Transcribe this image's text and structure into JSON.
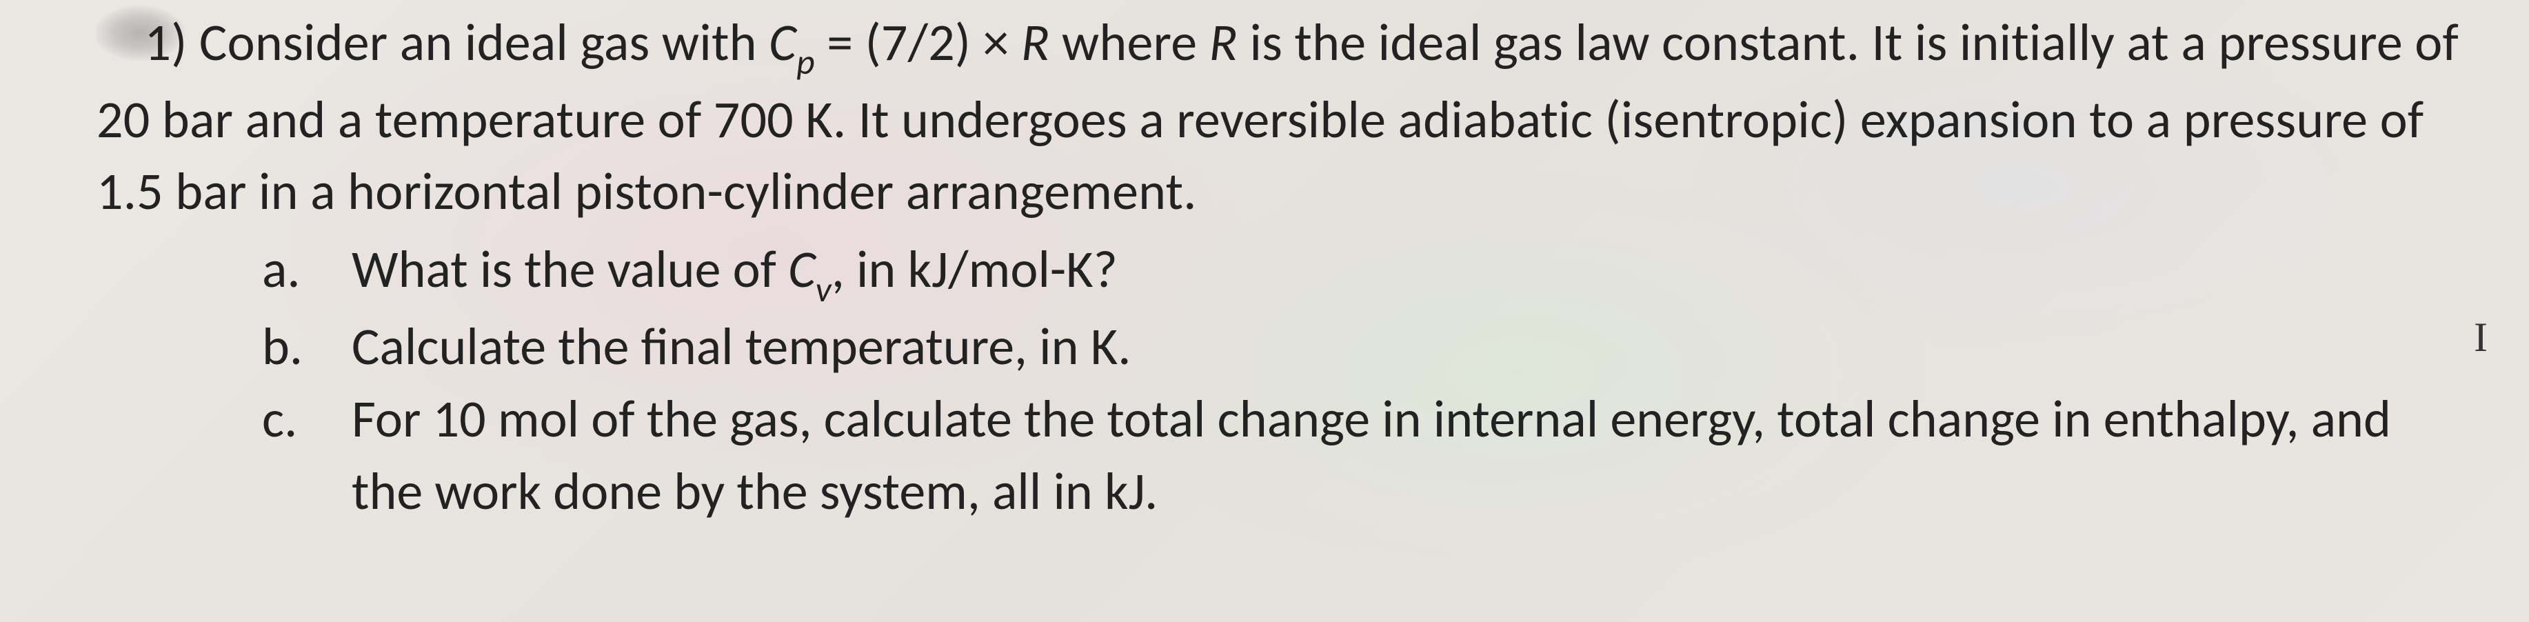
{
  "question": {
    "number": "1)",
    "intro_part1": "Consider an ideal gas with ",
    "cp_sym_C": "C",
    "cp_sym_p": "p",
    "intro_part2": " = (7/2) × ",
    "R1": "R",
    "intro_part3": " where ",
    "R2": "R",
    "intro_part4": " is the ideal gas law constant. It is initially at a pressure of 20 bar and a temperature of 700 K. It undergoes a reversible adiabatic (isentropic) expansion to a pressure of 1.5 bar in a horizontal piston-cylinder arrangement."
  },
  "parts": {
    "a": {
      "label": "a.",
      "text_pre": "What is the value of ",
      "cv_C": "C",
      "cv_v": "v",
      "text_post": ", in kJ/mol-K?"
    },
    "b": {
      "label": "b.",
      "text": "Calculate the final temperature, in K."
    },
    "c": {
      "label": "c.",
      "text": "For 10 mol of the gas, calculate the total change in internal energy, total change in enthalpy, and the work done by the system, all in kJ."
    }
  },
  "cursor_glyph": "I"
}
